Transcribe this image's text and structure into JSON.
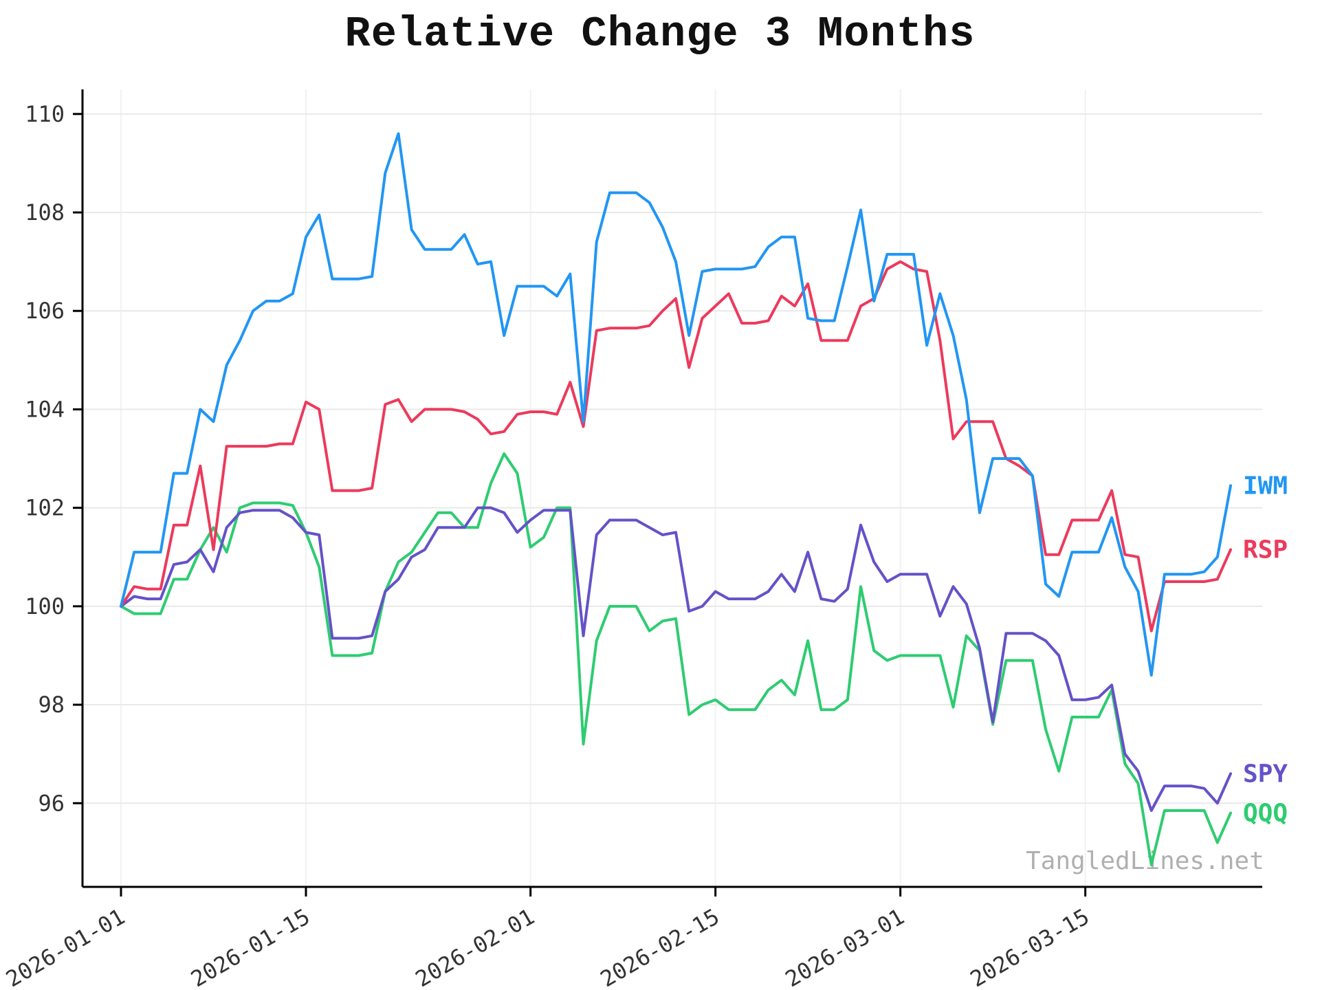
{
  "page": {
    "background": "#ffffff"
  },
  "chart_data": {
    "type": "line",
    "title": "Relative Change 3 Months",
    "watermark": "TangledLines.net",
    "xlabel": "",
    "ylabel": "",
    "grid": true,
    "legend_position": "right-edge-inline-labels",
    "n_points": 85,
    "ylim": [
      94.3,
      110.5
    ],
    "y_ticks": [
      96,
      98,
      100,
      102,
      104,
      106,
      108,
      110
    ],
    "x_tick_labels": [
      "2026-01-01",
      "2026-01-15",
      "2026-02-01",
      "2026-02-15",
      "2026-03-01",
      "2026-03-15"
    ],
    "x_tick_indices": [
      0,
      14,
      31,
      45,
      59,
      73
    ],
    "style": {
      "axis_color": "#000000",
      "grid_color_h": "#e9e9e9",
      "grid_color_v": "#f2f2f2",
      "tick_label_color": "#333333",
      "watermark_color": "#b0b0b0"
    },
    "series": [
      {
        "name": "IWM",
        "color": "#2196f3",
        "values": [
          100.0,
          101.1,
          101.1,
          101.1,
          102.7,
          102.7,
          104.0,
          103.75,
          104.9,
          105.4,
          106.0,
          106.2,
          106.2,
          106.35,
          107.5,
          107.95,
          106.65,
          106.65,
          106.65,
          106.7,
          108.8,
          109.6,
          107.65,
          107.25,
          107.25,
          107.25,
          107.55,
          106.95,
          107.0,
          105.5,
          106.5,
          106.5,
          106.5,
          106.3,
          106.75,
          103.75,
          107.4,
          108.4,
          108.4,
          108.4,
          108.2,
          107.7,
          107.0,
          105.5,
          106.8,
          106.85,
          106.85,
          106.85,
          106.9,
          107.3,
          107.5,
          107.5,
          105.85,
          105.8,
          105.8,
          106.9,
          108.05,
          106.2,
          107.15,
          107.15,
          107.15,
          105.3,
          106.35,
          105.5,
          104.2,
          101.9,
          103.0,
          103.0,
          103.0,
          102.65,
          100.45,
          100.2,
          101.1,
          101.1,
          101.1,
          101.8,
          100.8,
          100.3,
          98.6,
          100.65,
          100.65,
          100.65,
          100.7,
          101.0,
          102.45
        ]
      },
      {
        "name": "RSP",
        "color": "#ec3a5c",
        "values": [
          100.0,
          100.4,
          100.35,
          100.35,
          101.65,
          101.65,
          102.85,
          101.15,
          103.25,
          103.25,
          103.25,
          103.25,
          103.3,
          103.3,
          104.15,
          104.0,
          102.35,
          102.35,
          102.35,
          102.4,
          104.1,
          104.2,
          103.75,
          104.0,
          104.0,
          104.0,
          103.95,
          103.8,
          103.5,
          103.55,
          103.9,
          103.95,
          103.95,
          103.9,
          104.55,
          103.65,
          105.6,
          105.65,
          105.65,
          105.65,
          105.7,
          106.0,
          106.25,
          104.85,
          105.85,
          106.1,
          106.35,
          105.75,
          105.75,
          105.8,
          106.3,
          106.1,
          106.55,
          105.4,
          105.4,
          105.4,
          106.1,
          106.25,
          106.85,
          107.0,
          106.85,
          106.8,
          105.4,
          103.4,
          103.75,
          103.75,
          103.75,
          103.0,
          102.85,
          102.65,
          101.05,
          101.05,
          101.75,
          101.75,
          101.75,
          102.35,
          101.05,
          101.0,
          99.5,
          100.5,
          100.5,
          100.5,
          100.5,
          100.55,
          101.15
        ]
      },
      {
        "name": "SPY",
        "color": "#6452c8",
        "values": [
          100.0,
          100.2,
          100.15,
          100.15,
          100.85,
          100.9,
          101.15,
          100.7,
          101.6,
          101.9,
          101.95,
          101.95,
          101.95,
          101.8,
          101.5,
          101.45,
          99.35,
          99.35,
          99.35,
          99.4,
          100.3,
          100.55,
          101.0,
          101.15,
          101.6,
          101.6,
          101.6,
          102.0,
          102.0,
          101.9,
          101.5,
          101.75,
          101.95,
          101.95,
          101.95,
          99.4,
          101.45,
          101.75,
          101.75,
          101.75,
          101.6,
          101.45,
          101.5,
          99.9,
          100.0,
          100.3,
          100.15,
          100.15,
          100.15,
          100.3,
          100.65,
          100.3,
          101.1,
          100.15,
          100.1,
          100.35,
          101.65,
          100.9,
          100.5,
          100.65,
          100.65,
          100.65,
          99.8,
          100.4,
          100.05,
          99.15,
          97.65,
          99.45,
          99.45,
          99.45,
          99.3,
          99.0,
          98.1,
          98.1,
          98.15,
          98.4,
          97.0,
          96.65,
          95.85,
          96.35,
          96.35,
          96.35,
          96.3,
          96.0,
          96.6
        ]
      },
      {
        "name": "QQQ",
        "color": "#2ecc71",
        "values": [
          100.0,
          99.85,
          99.85,
          99.85,
          100.55,
          100.55,
          101.15,
          101.6,
          101.1,
          102.0,
          102.1,
          102.1,
          102.1,
          102.05,
          101.5,
          100.8,
          99.0,
          99.0,
          99.0,
          99.05,
          100.3,
          100.9,
          101.1,
          101.5,
          101.9,
          101.9,
          101.6,
          101.6,
          102.5,
          103.1,
          102.7,
          101.2,
          101.4,
          102.0,
          102.0,
          97.2,
          99.3,
          100.0,
          100.0,
          100.0,
          99.5,
          99.7,
          99.75,
          97.8,
          98.0,
          98.1,
          97.9,
          97.9,
          97.9,
          98.3,
          98.5,
          98.2,
          99.3,
          97.9,
          97.9,
          98.1,
          100.4,
          99.1,
          98.9,
          99.0,
          99.0,
          99.0,
          99.0,
          97.95,
          99.4,
          99.1,
          97.6,
          98.9,
          98.9,
          98.9,
          97.5,
          96.65,
          97.75,
          97.75,
          97.75,
          98.3,
          96.8,
          96.4,
          94.75,
          95.85,
          95.85,
          95.85,
          95.85,
          95.2,
          95.8
        ]
      }
    ]
  }
}
